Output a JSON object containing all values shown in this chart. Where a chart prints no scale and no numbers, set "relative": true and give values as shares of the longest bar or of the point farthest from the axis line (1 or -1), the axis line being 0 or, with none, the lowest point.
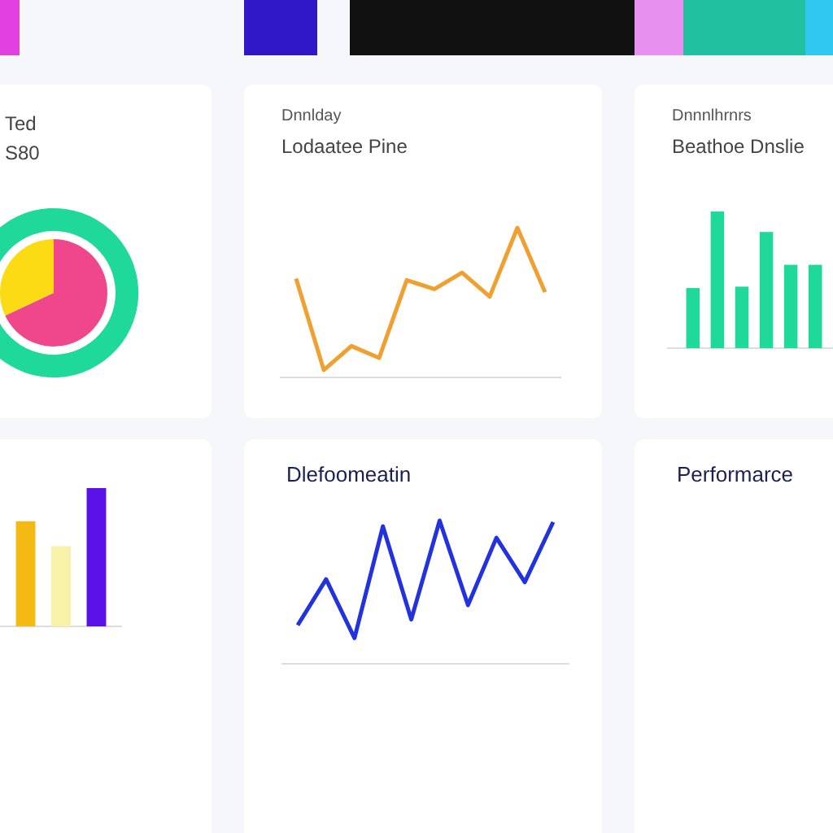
{
  "chart_data": [
    {
      "type": "pie",
      "title": "Ted",
      "subtitle": "S80",
      "categories": [
        null,
        null
      ],
      "values": [
        68,
        32
      ],
      "colors": [
        "#f0468c",
        "#fadb14"
      ]
    },
    {
      "type": "line",
      "title": "Lodaatee Pine",
      "subtitle": "Dnnlday",
      "relative": true,
      "categories": [
        null,
        null,
        null,
        null,
        null,
        null,
        null,
        null,
        null,
        null
      ],
      "series": [
        {
          "color": "#f0a030",
          "values": [
            0.66,
            0.05,
            0.21,
            0.13,
            0.65,
            0.59,
            0.7,
            0.54,
            1,
            0.57
          ]
        }
      ]
    },
    {
      "type": "bar",
      "title": "Beathoe Dnslie",
      "subtitle": "Dnnnlhrnrs",
      "relative": true,
      "categories": [
        null,
        null,
        null,
        null,
        null,
        null
      ],
      "series": [
        {
          "color": "#1ed99a",
          "values": [
            0.44,
            1,
            0.45,
            0.85,
            0.61,
            0.61
          ]
        }
      ]
    },
    {
      "type": "bar",
      "relative": true,
      "categories": [
        null,
        null,
        null
      ],
      "colors": [
        "#f5b914",
        "#f8f1a8",
        "#5b12e8"
      ],
      "values": [
        0.76,
        0.58,
        1
      ]
    },
    {
      "type": "line",
      "title": "Dlefoomeatin",
      "relative": true,
      "categories": [
        null,
        null,
        null,
        null,
        null,
        null,
        null,
        null,
        null,
        null
      ],
      "series": [
        {
          "color": "#2233dd",
          "values": [
            0.27,
            0.59,
            0.18,
            0.96,
            0.31,
            1,
            0.41,
            0.88,
            0.57,
            0.99
          ]
        }
      ]
    },
    {
      "type": "other",
      "title": "Performarce"
    }
  ]
}
